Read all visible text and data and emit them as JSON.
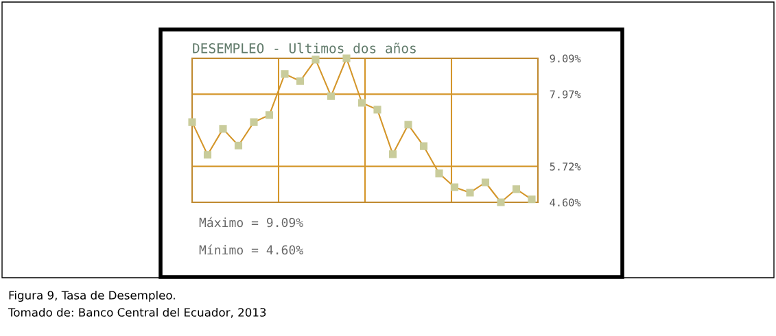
{
  "chart_data": {
    "type": "line",
    "title": "DESEMPLEO - Ultimos dos años",
    "categories": [
      null,
      null,
      null,
      null,
      null,
      null,
      null,
      null,
      null,
      null,
      null,
      null,
      null,
      null,
      null,
      null,
      null,
      null,
      null,
      null,
      null,
      null,
      null
    ],
    "series": [
      {
        "color": "#d4962a",
        "values": [
          7.1,
          6.08,
          6.89,
          6.37,
          7.1,
          7.32,
          8.6,
          8.38,
          9.05,
          7.91,
          9.09,
          7.7,
          7.49,
          6.1,
          7.02,
          6.35,
          5.5,
          5.07,
          4.9,
          5.22,
          4.6,
          5.01,
          4.69
        ]
      }
    ],
    "ylim": [
      4.6,
      9.09
    ],
    "yticks": [
      {
        "value": 4.6,
        "label": "4.60%"
      },
      {
        "value": 5.72,
        "label": "5.72%"
      },
      {
        "value": 7.97,
        "label": "7.97%"
      },
      {
        "value": 9.09,
        "label": "9.09%"
      }
    ],
    "tick_labels": "y",
    "grid": true,
    "marker": "square",
    "line_style": "solid",
    "annotations": [
      "Máximo = 9.09%",
      "Mínimo = 4.60%",
      "Figura 9, Tasa de Desempleo.",
      "Tomado de: Banco Central del Ecuador, 2013"
    ]
  }
}
